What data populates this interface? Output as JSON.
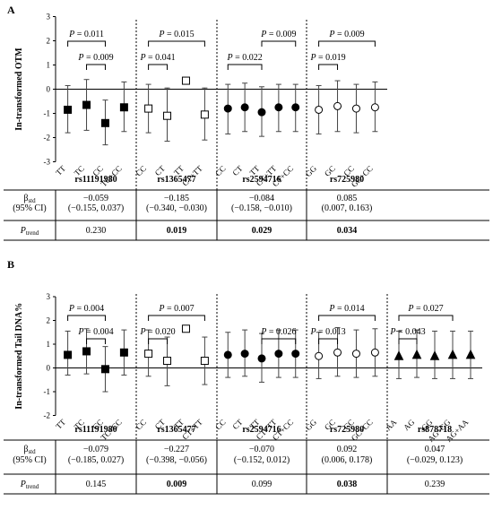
{
  "chart_data": [
    {
      "panel": "A",
      "type": "scatter",
      "ylabel": "In-transformed OTM",
      "ylim": [
        -3,
        3
      ],
      "yticks": [
        -3,
        -2,
        -1,
        0,
        1,
        2,
        3
      ],
      "marker": "square",
      "stat_labels": {
        "beta": "βstd",
        "ci": "(95% CI)",
        "ptrend": "Ptrend"
      },
      "groups": [
        {
          "snp": "rs11191980",
          "fill": "filled",
          "categories": [
            "TT",
            "TC",
            "CC",
            "TC+CC"
          ],
          "points": [
            {
              "mean": -0.85,
              "lower": -1.8,
              "upper": 0.15
            },
            {
              "mean": -0.65,
              "lower": -1.7,
              "upper": 0.4
            },
            {
              "mean": -1.4,
              "lower": -2.3,
              "upper": -0.45
            },
            {
              "mean": -0.75,
              "lower": -1.75,
              "upper": 0.3
            }
          ],
          "brackets": [
            {
              "from": 0,
              "to": 2,
              "level": 2,
              "label": "P = 0.011"
            },
            {
              "from": 1,
              "to": 2,
              "level": 1,
              "label": "P = 0.009"
            }
          ],
          "beta": "−0.059",
          "ci": "(−0.155, 0.037)",
          "ptrend": "0.230",
          "ptrend_bold": false
        },
        {
          "snp": "rs1365477",
          "fill": "open",
          "categories": [
            "CC",
            "CT",
            "TT",
            "CT+TT"
          ],
          "points": [
            {
              "mean": -0.8,
              "lower": -1.8,
              "upper": 0.2
            },
            {
              "mean": -1.1,
              "lower": -2.15,
              "upper": 0.05
            },
            {
              "mean": 0.35,
              "lower": null,
              "upper": null
            },
            {
              "mean": -1.05,
              "lower": -2.1,
              "upper": 0.05
            }
          ],
          "brackets": [
            {
              "from": 0,
              "to": 3,
              "level": 2,
              "label": "P = 0.015"
            },
            {
              "from": 0,
              "to": 1,
              "level": 1,
              "label": "P = 0.041"
            }
          ],
          "beta": "−0.185",
          "ci": "(−0.340, −0.030)",
          "ptrend": "0.019",
          "ptrend_bold": true
        },
        {
          "snp": "rs2594716",
          "fill": "filled",
          "marker": "circle",
          "categories": [
            "CC",
            "CT",
            "TT",
            "CT+TT",
            "CT+CC"
          ],
          "points": [
            {
              "mean": -0.8,
              "lower": -1.85,
              "upper": 0.2
            },
            {
              "mean": -0.75,
              "lower": -1.75,
              "upper": 0.25
            },
            {
              "mean": -0.95,
              "lower": -1.95,
              "upper": 0.1
            },
            {
              "mean": -0.75,
              "lower": -1.75,
              "upper": 0.2
            },
            {
              "mean": -0.75,
              "lower": -1.75,
              "upper": 0.2
            }
          ],
          "brackets": [
            {
              "from": 2,
              "to": 4,
              "level": 2,
              "label": "P = 0.009"
            },
            {
              "from": 0,
              "to": 2,
              "level": 1,
              "label": "P = 0.022"
            }
          ],
          "beta": "−0.084",
          "ci": "(−0.158, −0.010)",
          "ptrend": "0.029",
          "ptrend_bold": true
        },
        {
          "snp": "rs725980",
          "fill": "open",
          "marker": "circle",
          "categories": [
            "GG",
            "GC",
            "CC",
            "GC+CC"
          ],
          "points": [
            {
              "mean": -0.85,
              "lower": -1.85,
              "upper": 0.15
            },
            {
              "mean": -0.7,
              "lower": -1.75,
              "upper": 0.35
            },
            {
              "mean": -0.8,
              "lower": -1.8,
              "upper": 0.2
            },
            {
              "mean": -0.75,
              "lower": -1.75,
              "upper": 0.3
            }
          ],
          "brackets": [
            {
              "from": 0,
              "to": 3,
              "level": 2,
              "label": "P = 0.009"
            },
            {
              "from": 0,
              "to": 1,
              "level": 1,
              "label": "P = 0.019"
            }
          ],
          "beta": "0.085",
          "ci": "(0.007, 0.163)",
          "ptrend": "0.034",
          "ptrend_bold": true
        }
      ]
    },
    {
      "panel": "B",
      "type": "scatter",
      "ylabel": "In-transformed Tail DNA%",
      "ylim": [
        -2,
        3
      ],
      "yticks": [
        -2,
        -1,
        0,
        1,
        2,
        3
      ],
      "marker": "square",
      "stat_labels": {
        "beta": "βstd",
        "ci": "(95% CI)",
        "ptrend": "Ptrend"
      },
      "groups": [
        {
          "snp": "rs11191980",
          "fill": "filled",
          "categories": [
            "TT",
            "TC",
            "CC",
            "TC+CC"
          ],
          "points": [
            {
              "mean": 0.55,
              "lower": -0.3,
              "upper": 1.55
            },
            {
              "mean": 0.7,
              "lower": -0.25,
              "upper": 1.65
            },
            {
              "mean": -0.05,
              "lower": -1.0,
              "upper": 0.9
            },
            {
              "mean": 0.65,
              "lower": -0.3,
              "upper": 1.6
            }
          ],
          "brackets": [
            {
              "from": 0,
              "to": 2,
              "level": 2,
              "label": "P = 0.004"
            },
            {
              "from": 1,
              "to": 2,
              "level": 1,
              "label": "P = 0.004"
            }
          ],
          "beta": "−0.079",
          "ci": "(−0.185, 0.027)",
          "ptrend": "0.145",
          "ptrend_bold": false
        },
        {
          "snp": "rs1365477",
          "fill": "open",
          "categories": [
            "CC",
            "CT",
            "TT",
            "CT+TT"
          ],
          "points": [
            {
              "mean": 0.6,
              "lower": -0.35,
              "upper": 1.6
            },
            {
              "mean": 0.3,
              "lower": -0.75,
              "upper": 1.3
            },
            {
              "mean": 1.65,
              "lower": null,
              "upper": null
            },
            {
              "mean": 0.3,
              "lower": -0.7,
              "upper": 1.3
            }
          ],
          "brackets": [
            {
              "from": 0,
              "to": 3,
              "level": 2,
              "label": "P = 0.007"
            },
            {
              "from": 0,
              "to": 1,
              "level": 1,
              "label": "P = 0.020"
            }
          ],
          "beta": "−0.227",
          "ci": "(−0.398, −0.056)",
          "ptrend": "0.009",
          "ptrend_bold": true
        },
        {
          "snp": "rs2594716",
          "fill": "filled",
          "marker": "circle",
          "categories": [
            "CC",
            "CT",
            "TT",
            "CT+TT",
            "CT+CC"
          ],
          "points": [
            {
              "mean": 0.55,
              "lower": -0.4,
              "upper": 1.5
            },
            {
              "mean": 0.6,
              "lower": -0.35,
              "upper": 1.6
            },
            {
              "mean": 0.4,
              "lower": -0.6,
              "upper": 1.45
            },
            {
              "mean": 0.6,
              "lower": -0.4,
              "upper": 1.6
            },
            {
              "mean": 0.6,
              "lower": -0.4,
              "upper": 1.6
            }
          ],
          "brackets": [
            {
              "from": 2,
              "to": 4,
              "level": 1,
              "label": "P = 0.026"
            }
          ],
          "beta": "−0.070",
          "ci": "(−0.152, 0.012)",
          "ptrend": "0.099",
          "ptrend_bold": false
        },
        {
          "snp": "rs725980",
          "fill": "open",
          "marker": "circle",
          "categories": [
            "GG",
            "GC",
            "CC",
            "GC+CC"
          ],
          "points": [
            {
              "mean": 0.5,
              "lower": -0.45,
              "upper": 1.5
            },
            {
              "mean": 0.65,
              "lower": -0.35,
              "upper": 1.7
            },
            {
              "mean": 0.6,
              "lower": -0.4,
              "upper": 1.6
            },
            {
              "mean": 0.65,
              "lower": -0.35,
              "upper": 1.65
            }
          ],
          "brackets": [
            {
              "from": 0,
              "to": 3,
              "level": 2,
              "label": "P = 0.014"
            },
            {
              "from": 0,
              "to": 1,
              "level": 1,
              "label": "P = 0.013"
            }
          ],
          "beta": "0.092",
          "ci": "(0.006, 0.178)",
          "ptrend": "0.038",
          "ptrend_bold": true
        },
        {
          "snp": "rs878718",
          "fill": "filled",
          "marker": "triangle",
          "categories": [
            "AA",
            "AG",
            "GG",
            "AG+GG",
            "AG+AA"
          ],
          "points": [
            {
              "mean": 0.5,
              "lower": -0.45,
              "upper": 1.55
            },
            {
              "mean": 0.55,
              "lower": -0.4,
              "upper": 1.6
            },
            {
              "mean": 0.5,
              "lower": -0.45,
              "upper": 1.55
            },
            {
              "mean": 0.55,
              "lower": -0.45,
              "upper": 1.55
            },
            {
              "mean": 0.55,
              "lower": -0.45,
              "upper": 1.55
            }
          ],
          "brackets": [
            {
              "from": 0,
              "to": 3,
              "level": 2,
              "label": "P = 0.027"
            },
            {
              "from": 0,
              "to": 1,
              "level": 1,
              "label": "P = 0.043"
            }
          ],
          "beta": "0.047",
          "ci": "(−0.029, 0.123)",
          "ptrend": "0.239",
          "ptrend_bold": false
        }
      ]
    }
  ]
}
